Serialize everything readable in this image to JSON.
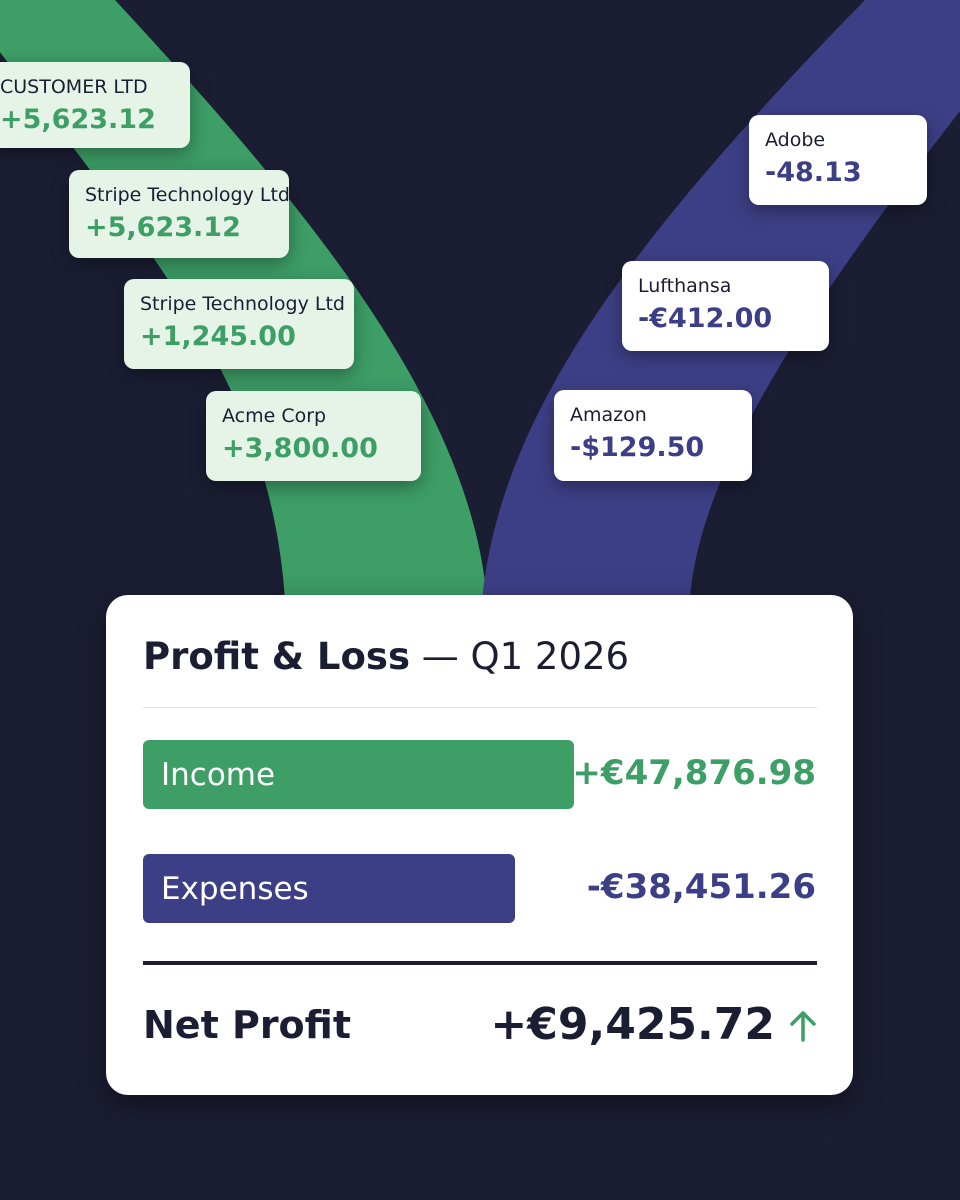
{
  "income_transactions": [
    {
      "name": "CUSTOMER LTD",
      "amount": "+5,623.12"
    },
    {
      "name": "Stripe Technology Ltd",
      "amount": "+5,623.12"
    },
    {
      "name": "Stripe Technology Ltd",
      "amount": "+1,245.00"
    },
    {
      "name": "Acme Corp",
      "amount": "+3,800.00"
    }
  ],
  "expense_transactions": [
    {
      "name": "Adobe",
      "amount": "-48.13"
    },
    {
      "name": "Lufthansa",
      "amount": "-€412.00"
    },
    {
      "name": "Amazon",
      "amount": "-$129.50"
    }
  ],
  "panel": {
    "title": "Profit & Loss",
    "period": "— Q1 2026",
    "rows": [
      {
        "label": "Income",
        "amount": "+€47,876.98"
      },
      {
        "label": "Expenses",
        "amount": "-€38,451.26"
      }
    ],
    "net_label": "Net Profit",
    "net_amount": "+€9,425.72"
  }
}
